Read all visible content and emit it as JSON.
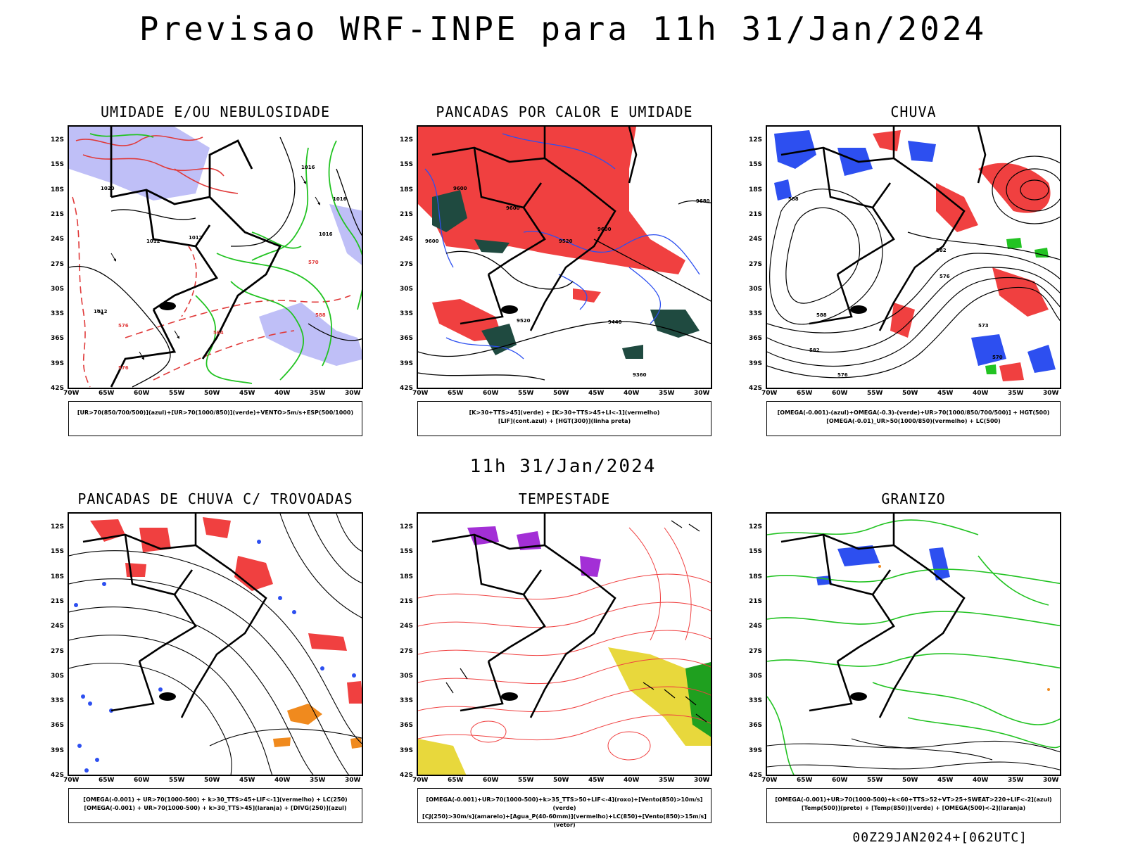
{
  "header": {
    "title": "Previsao WRF-INPE  para 11h 31/Jan/2024",
    "mid_title": "11h 31/Jan/2024",
    "footer": "00Z29JAN2024+[062UTC]"
  },
  "axes": {
    "lat_ticks": [
      "12S",
      "15S",
      "18S",
      "21S",
      "24S",
      "27S",
      "30S",
      "33S",
      "36S",
      "39S",
      "42S"
    ],
    "lon_ticks": [
      "70W",
      "65W",
      "60W",
      "55W",
      "50W",
      "45W",
      "40W",
      "35W",
      "30W"
    ]
  },
  "panels": [
    {
      "title": "UMIDADE E/OU NEBULOSIDADE",
      "legend": [
        "[UR>70(850/700/500)](azul)+[UR>70(1000/850)](verde)+VENTO>5m/s+ESP(500/1000)"
      ]
    },
    {
      "title": "PANCADAS POR CALOR E UMIDADE",
      "legend": [
        "[K>30+TTS>45](verde) + [K>30+TTS>45+LI<-1](vermelho)",
        "[LIF](cont.azul) + [HGT(300)](linha preta)"
      ]
    },
    {
      "title": "CHUVA",
      "legend": [
        "[OMEGA(-0.001)-(azul)+OMEGA(-0.3)-(verde)+UR>70(1000/850/700/500)] + HGT(500)",
        "[OMEGA(-0.01)_UR>50(1000/850)(vermelho) + LC(500)"
      ]
    },
    {
      "title": "PANCADAS DE CHUVA C/ TROVOADAS",
      "legend": [
        "[OMEGA(-0.001) + UR>70(1000-500) + k>30_TTS>45+LIF<-1](vermelho) + LC(250)",
        "[OMEGA(-0.001) + UR>70(1000-500) + k>30_TTS>45](laranja) + [DIVG(250)](azul)"
      ]
    },
    {
      "title": "TEMPESTADE",
      "legend": [
        "[OMEGA(-0.001)+UR>70(1000-500)+k>35_TTS>50+LIF<-4](roxo)+[Vento(850)>10m/s](verde)",
        "[CJ(250)>30m/s](amarelo)+[Agua_P(40-60mm)](vermelho)+LC(850)+[Vento(850)>15m/s](vetor)"
      ]
    },
    {
      "title": "GRANIZO",
      "legend": [
        "[OMEGA(-0.001)+UR>70(1000-500)+k<60+TTS>52+VT>25+SWEAT>220+LIF<-2](azul)",
        "[Temp(500)](preto) + [Temp(850)](verde) + [OMEGA(500)<-2](laranja)"
      ]
    }
  ],
  "contour_labels": {
    "p1": [
      "1012",
      "1012",
      "1012",
      "1016",
      "1016",
      "1016",
      "1020",
      "576",
      "576",
      "570",
      "564",
      "588"
    ],
    "p2": [
      "9600",
      "9600",
      "9600",
      "9600",
      "9520",
      "9520",
      "9680",
      "9440",
      "9360"
    ],
    "p3": [
      "588",
      "588",
      "582",
      "582",
      "576",
      "576",
      "573",
      "570"
    ]
  }
}
